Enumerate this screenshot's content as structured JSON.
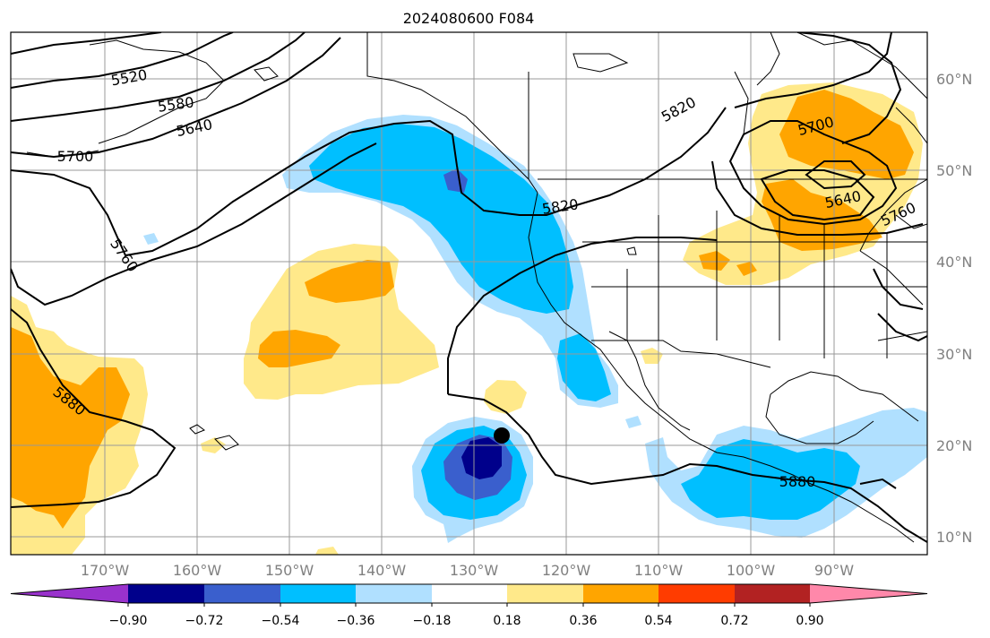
{
  "title": "2024080600 F084",
  "map": {
    "lat_labels": [
      "60°N",
      "50°N",
      "40°N",
      "30°N",
      "20°N",
      "10°N"
    ],
    "lon_labels": [
      "170°W",
      "160°W",
      "150°W",
      "140°W",
      "130°W",
      "120°W",
      "110°W",
      "100°W",
      "90°W"
    ],
    "contour_labels": [
      "5520",
      "5580",
      "5640",
      "5700",
      "5760",
      "5820",
      "5880",
      "5700",
      "5640",
      "5760",
      "5820",
      "5880"
    ],
    "marker": {
      "lon": -126.0,
      "lat": 21.0
    }
  },
  "colorbar": {
    "ticks": [
      "−0.90",
      "−0.72",
      "−0.54",
      "−0.36",
      "−0.18",
      "0.18",
      "0.36",
      "0.54",
      "0.72",
      "0.90"
    ],
    "colors": [
      "#9932cc",
      "#00008b",
      "#3a5fcd",
      "#00bfff",
      "#b0e0ff",
      "#ffffff",
      "#ffe98a",
      "#ffa500",
      "#ff3c00",
      "#b22222",
      "#ff88aa"
    ]
  }
}
